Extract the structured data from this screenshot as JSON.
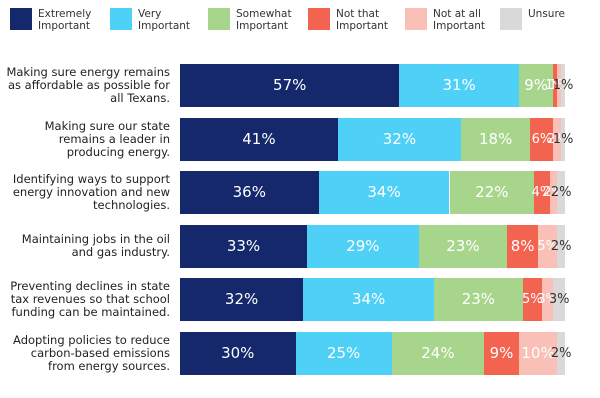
{
  "chart_data": {
    "type": "bar",
    "orientation": "horizontal",
    "stacked": true,
    "categories": [
      "Making sure energy remains as affordable as possible for all Texans.",
      "Making sure our state remains a leader in producing energy.",
      "Identifying ways to support energy innovation and new technologies.",
      "Maintaining jobs in the oil and gas industry.",
      "Preventing declines in state tax revenues so that school funding can be maintained.",
      "Adopting policies to reduce carbon-based emissions from energy sources."
    ],
    "series": [
      {
        "name": "Extremely Important",
        "color": "#14286b",
        "values": [
          57,
          41,
          36,
          33,
          32,
          30
        ],
        "value_labels": [
          "57%",
          "41%",
          "36%",
          "33%",
          "32%",
          "30%"
        ]
      },
      {
        "name": "Very Important",
        "color": "#4fd0f7",
        "values": [
          31,
          32,
          34,
          29,
          34,
          25
        ],
        "value_labels": [
          "31%",
          "32%",
          "34%",
          "29%",
          "34%",
          "25%"
        ]
      },
      {
        "name": "Somewhat Important",
        "color": "#a8d58c",
        "values": [
          9,
          18,
          22,
          23,
          23,
          24
        ],
        "value_labels": [
          "9%",
          "18%",
          "22%",
          "23%",
          "23%",
          "24%"
        ]
      },
      {
        "name": "Not that Important",
        "color": "#f26350",
        "values": [
          1,
          6,
          4,
          8,
          5,
          9
        ],
        "value_labels": [
          "1%",
          "6%",
          "4%",
          "8%",
          "5%",
          "9%"
        ]
      },
      {
        "name": "Not at all Important",
        "color": "#f9c0b8",
        "values": [
          1,
          2,
          2,
          5,
          3,
          10
        ],
        "value_labels": [
          "1%",
          "2%",
          "2%",
          "5%",
          "3%",
          "10%"
        ]
      },
      {
        "name": "Unsure",
        "color": "#d9d9d9",
        "values": [
          1,
          1,
          2,
          2,
          3,
          2
        ],
        "value_labels": [
          "1%",
          "1%",
          "2%",
          "2%",
          "3%",
          "2%"
        ]
      }
    ]
  }
}
